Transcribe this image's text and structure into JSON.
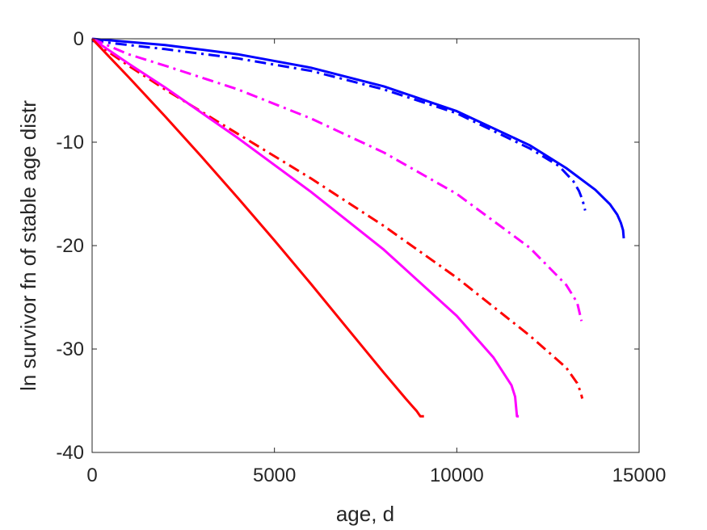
{
  "chart_data": {
    "type": "line",
    "title": "",
    "xlabel": "age, d",
    "ylabel": "ln survivor fn of stable age distr",
    "xlim": [
      0,
      15000
    ],
    "ylim": [
      -40,
      0
    ],
    "xticks": [
      0,
      5000,
      10000,
      15000
    ],
    "yticks": [
      0,
      -10,
      -20,
      -30,
      -40
    ],
    "xtick_labels": [
      "0",
      "5000",
      "10000",
      "15000"
    ],
    "ytick_labels": [
      "0",
      "-10",
      "-20",
      "-30",
      "-40"
    ],
    "grid": false,
    "series": [
      {
        "color": "#0000ff",
        "style": "solid",
        "x": [
          0,
          2000,
          4000,
          6000,
          8000,
          10000,
          12000,
          13000,
          13800,
          14200,
          14400,
          14500,
          14560,
          14580
        ],
        "y": [
          0,
          -0.6,
          -1.5,
          -2.8,
          -4.6,
          -7.0,
          -10.3,
          -12.5,
          -14.6,
          -16.0,
          -17.0,
          -17.8,
          -18.5,
          -19.3
        ]
      },
      {
        "color": "#0000ff",
        "style": "dashdot",
        "x": [
          0,
          2000,
          4000,
          6000,
          8000,
          10000,
          12000,
          12800,
          13200,
          13350,
          13450,
          13520
        ],
        "y": [
          -0.2,
          -1.0,
          -1.9,
          -3.1,
          -4.9,
          -7.2,
          -10.6,
          -12.3,
          -13.8,
          -14.7,
          -15.6,
          -16.6
        ]
      },
      {
        "color": "#ff00ff",
        "style": "dashdot",
        "x": [
          0,
          1000,
          2000,
          4000,
          6000,
          8000,
          10000,
          12000,
          13000,
          13300,
          13420
        ],
        "y": [
          0,
          -1.5,
          -2.6,
          -4.9,
          -7.7,
          -11.0,
          -15.0,
          -20.2,
          -23.8,
          -25.5,
          -27.3
        ]
      },
      {
        "color": "#ff0000",
        "style": "dashdot",
        "x": [
          0,
          500,
          1000,
          2000,
          4000,
          6000,
          8000,
          10000,
          12000,
          13000,
          13300,
          13400,
          13440
        ],
        "y": [
          0,
          -1.4,
          -2.6,
          -4.9,
          -9.2,
          -13.5,
          -18.1,
          -23.1,
          -28.7,
          -31.8,
          -33.3,
          -34.2,
          -34.8
        ]
      },
      {
        "color": "#ff00ff",
        "style": "solid",
        "x": [
          0,
          1000,
          2000,
          4000,
          6000,
          8000,
          10000,
          11000,
          11500,
          11600,
          11650,
          11700
        ],
        "y": [
          0,
          -2.4,
          -4.7,
          -9.6,
          -14.8,
          -20.4,
          -26.8,
          -30.8,
          -33.5,
          -34.6,
          -36.5,
          -36.5
        ]
      },
      {
        "color": "#ff0000",
        "style": "solid",
        "x": [
          0,
          1000,
          2000,
          3000,
          4000,
          5000,
          6000,
          7000,
          8000,
          8600,
          8900,
          9000,
          9100
        ],
        "y": [
          0,
          -3.7,
          -7.5,
          -11.4,
          -15.4,
          -19.5,
          -23.7,
          -28.0,
          -32.3,
          -34.8,
          -36.0,
          -36.5,
          -36.5
        ]
      }
    ]
  }
}
